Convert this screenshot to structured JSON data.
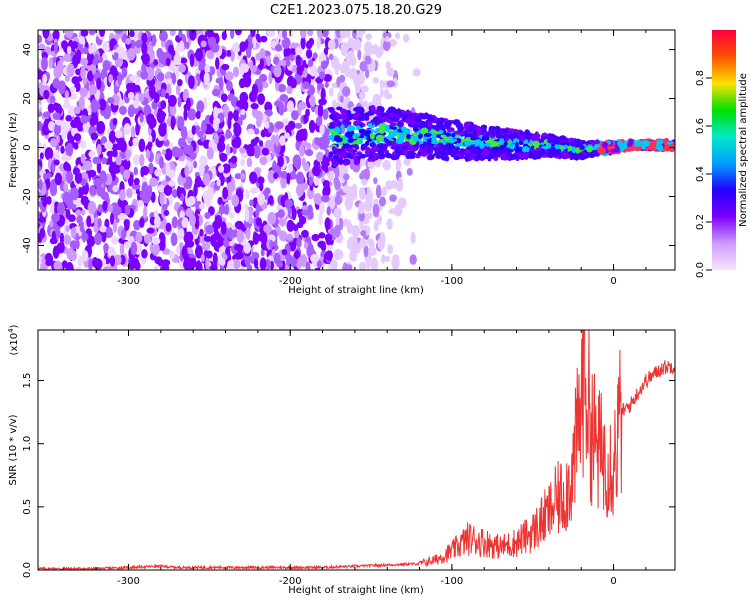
{
  "figure_title": "C2E1.2023.075.18.20.G29",
  "colors": {
    "axis": "#000000",
    "snr_line": "#ee3333",
    "colorbar_stops": [
      "#f4e6ff",
      "#cf9aff",
      "#7b00ff",
      "#2200ff",
      "#00a0ff",
      "#00e8c8",
      "#00e000",
      "#ffe000",
      "#ff5000",
      "#ff0040"
    ]
  },
  "chart_data": [
    {
      "type": "heatmap",
      "title": "",
      "xlabel": "Height of straight line (km)",
      "ylabel": "Frequency (Hz)",
      "xlim": [
        -356,
        38
      ],
      "ylim": [
        -50,
        48
      ],
      "x_ticks": [
        -300,
        -200,
        -100,
        0
      ],
      "x_tick_labels": [
        "-300",
        "-200",
        "-100",
        "0"
      ],
      "y_ticks": [
        -40,
        -20,
        0,
        20,
        40
      ],
      "y_tick_labels": [
        "-40",
        "-20",
        "0",
        "20",
        "40"
      ],
      "grid": false,
      "description_series": [
        {
          "x": [
            -175,
            -160,
            -140,
            -120,
            -100,
            -80,
            -60,
            -40,
            -20,
            -10,
            0,
            10,
            20,
            38
          ],
          "y": [
            4,
            5,
            6,
            5,
            3,
            2,
            1,
            1,
            -1,
            0,
            0,
            1,
            1,
            1
          ]
        }
      ],
      "colorbar": {
        "label": "Normalized spectral amplitude",
        "range": [
          0.0,
          1.0
        ],
        "ticks": [
          0.0,
          0.2,
          0.4,
          0.6,
          0.8
        ],
        "tick_labels": [
          "0.0",
          "0.2",
          "0.4",
          "0.6",
          "0.8"
        ]
      }
    },
    {
      "type": "line",
      "title": "",
      "xlabel": "Height of straight line (km)",
      "ylabel": "SNR (10 * v/v)",
      "y_multiplier": "(x10",
      "y_multiplier_exp": "4",
      "y_multiplier_close": ")",
      "xlim": [
        -356,
        38
      ],
      "ylim": [
        0.0,
        1.9
      ],
      "x_ticks": [
        -300,
        -200,
        -100,
        0
      ],
      "x_tick_labels": [
        "-300",
        "-200",
        "-100",
        "0"
      ],
      "y_ticks": [
        0.0,
        0.5,
        1.0,
        1.5
      ],
      "y_tick_labels": [
        "0.0",
        "0.5",
        "1.0",
        "1.5"
      ],
      "grid": false,
      "series": [
        {
          "x": [
            -356,
            -340,
            -320,
            -300,
            -280,
            -270,
            -260,
            -240,
            -220,
            -200,
            -180,
            -160,
            -140,
            -120,
            -110,
            -100,
            -90,
            -80,
            -70,
            -60,
            -50,
            -40,
            -35,
            -30,
            -25,
            -20,
            -18,
            -15,
            -10,
            -5,
            0,
            5,
            10,
            15,
            20,
            25,
            30,
            38
          ],
          "y": [
            0.01,
            0.01,
            0.01,
            0.02,
            0.03,
            0.02,
            0.02,
            0.02,
            0.02,
            0.02,
            0.02,
            0.03,
            0.04,
            0.05,
            0.08,
            0.15,
            0.25,
            0.22,
            0.18,
            0.22,
            0.3,
            0.45,
            0.55,
            0.6,
            0.8,
            1.3,
            1.75,
            1.2,
            0.95,
            0.9,
            0.85,
            1.25,
            1.3,
            1.4,
            1.5,
            1.55,
            1.6,
            1.62
          ]
        }
      ]
    }
  ]
}
